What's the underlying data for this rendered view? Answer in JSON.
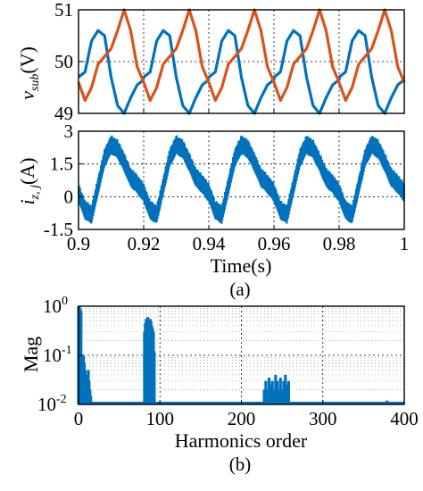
{
  "chart_data": [
    {
      "panel": "a-top",
      "type": "line",
      "ylabel": "v_sub (V)",
      "ylabel_main": "v",
      "ylabel_sub": "sub",
      "ylabel_unit": "(V)",
      "xlim": [
        0.9,
        1.0
      ],
      "ylim": [
        49,
        51
      ],
      "yticks": [
        49,
        50,
        51
      ],
      "grid": true,
      "series": [
        {
          "color": "#0072bd",
          "x": [
            0.9,
            0.902,
            0.904,
            0.906,
            0.908,
            0.91,
            0.912,
            0.914,
            0.916,
            0.918,
            0.92
          ],
          "values": [
            49.7,
            49.8,
            50.4,
            50.6,
            50.5,
            49.7,
            49.15,
            49.0,
            49.3,
            49.55,
            49.65
          ]
        },
        {
          "color": "#d95319",
          "x": [
            0.9,
            0.902,
            0.904,
            0.906,
            0.908,
            0.91,
            0.912,
            0.914,
            0.916,
            0.918,
            0.92
          ],
          "values": [
            49.6,
            49.25,
            49.5,
            49.95,
            50.1,
            50.25,
            50.6,
            51.0,
            50.6,
            49.9,
            49.6
          ]
        }
      ]
    },
    {
      "panel": "a-bottom",
      "type": "line",
      "ylabel": "i_z,j (A)",
      "ylabel_main": "i",
      "ylabel_sub": "z, j",
      "ylabel_unit": "(A)",
      "xlabel": "Time(s)",
      "xlim": [
        0.9,
        1.0
      ],
      "xticks": [
        0.9,
        0.92,
        0.94,
        0.96,
        0.98,
        1
      ],
      "xtick_labels": [
        "0.9",
        "0.92",
        "0.94",
        "0.96",
        "0.98",
        "1"
      ],
      "ylim": [
        -1.5,
        3
      ],
      "yticks": [
        -1.5,
        0,
        1.5,
        3
      ],
      "ytick_labels": [
        "-1.5",
        "0",
        "1.5",
        "3"
      ],
      "grid": true,
      "series": [
        {
          "color": "#0072bd",
          "x": [
            0.9,
            0.902,
            0.904,
            0.906,
            0.908,
            0.91,
            0.912,
            0.914,
            0.916,
            0.918,
            0.92
          ],
          "values": [
            0.2,
            -0.6,
            -0.8,
            0.5,
            1.8,
            2.4,
            2.2,
            1.6,
            0.9,
            0.6,
            0.2
          ],
          "band": 0.45
        }
      ]
    },
    {
      "panel": "b",
      "type": "bar",
      "xlabel": "Harmonics order",
      "ylabel": "Mag",
      "xlim": [
        0,
        400
      ],
      "xticks": [
        0,
        100,
        200,
        300,
        400
      ],
      "ylim": [
        0.01,
        1
      ],
      "ylog": true,
      "yticks": [
        0.01,
        0.1,
        1
      ],
      "ytick_base": "10",
      "ytick_exponents": [
        "-2",
        "-1",
        "0"
      ],
      "grid": true,
      "color": "#0072bd",
      "x": [
        0,
        1,
        2,
        3,
        6,
        7,
        8,
        9,
        10,
        11,
        12,
        13,
        14,
        15,
        81,
        82,
        83,
        84,
        85,
        86,
        87,
        88,
        89,
        90,
        91,
        92,
        93,
        228,
        230,
        232,
        234,
        236,
        238,
        240,
        242,
        244,
        246,
        248,
        250,
        252,
        254,
        256,
        258,
        379
      ],
      "values": [
        1.0,
        1.0,
        0.9,
        0.8,
        0.1,
        0.07,
        0.05,
        0.04,
        0.03,
        0.02,
        0.05,
        0.03,
        0.02,
        0.015,
        0.3,
        0.45,
        0.55,
        0.5,
        0.6,
        0.5,
        0.45,
        0.55,
        0.5,
        0.4,
        0.35,
        0.3,
        0.12,
        0.02,
        0.03,
        0.02,
        0.035,
        0.025,
        0.03,
        0.02,
        0.04,
        0.03,
        0.02,
        0.035,
        0.02,
        0.03,
        0.04,
        0.025,
        0.03,
        0.012
      ]
    }
  ],
  "captions": {
    "a": "(a)",
    "b": "(b)"
  }
}
